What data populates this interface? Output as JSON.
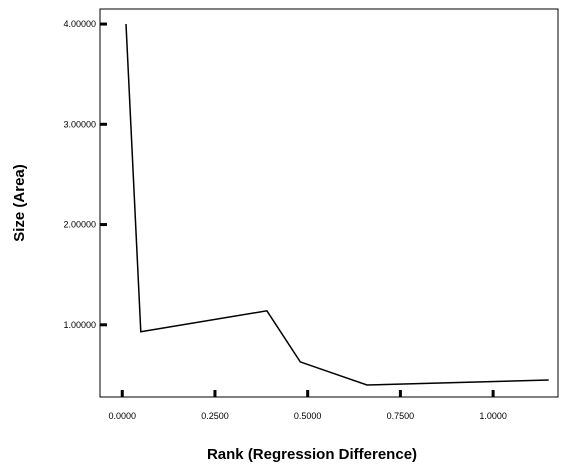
{
  "chart_data": {
    "type": "line",
    "title": "",
    "xlabel": "Rank (Regression Difference)",
    "ylabel": "Size (Area)",
    "xlim": [
      -0.06,
      1.175
    ],
    "ylim": [
      0.28,
      4.15
    ],
    "x_ticks": [
      0.0,
      0.25,
      0.5,
      0.75,
      1.0
    ],
    "x_tick_labels": [
      "0.0000",
      "0.2500",
      "0.5000",
      "0.7500",
      "1.0000"
    ],
    "y_ticks": [
      1.0,
      2.0,
      3.0,
      4.0
    ],
    "y_tick_labels": [
      "1.00000",
      "2.00000",
      "3.00000",
      "4.00000"
    ],
    "grid": false,
    "legend": "none",
    "series": [
      {
        "x": [
          0.01,
          0.05,
          0.39,
          0.48,
          0.66,
          1.15
        ],
        "y": [
          4.0,
          0.93,
          1.14,
          0.63,
          0.4,
          0.45
        ]
      }
    ],
    "colors": {
      "line": "#000000",
      "axis": "#000000",
      "background": "#ffffff"
    }
  }
}
